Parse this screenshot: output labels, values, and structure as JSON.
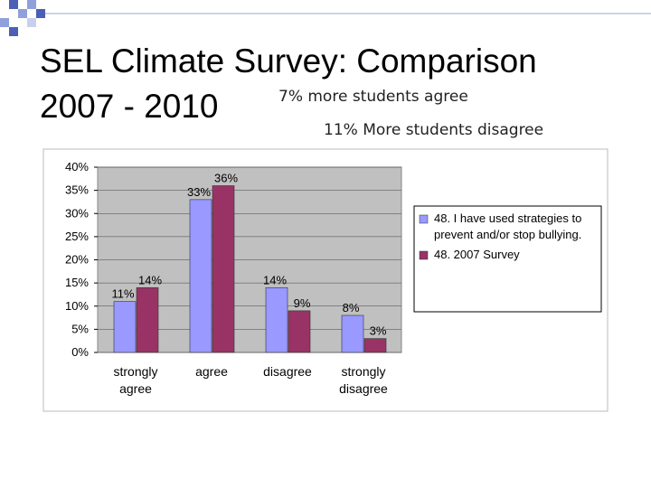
{
  "title_lines": [
    "SEL Climate Survey: Comparison",
    "2007 - 2010"
  ],
  "annotations": [
    "7% more students agree",
    "11% More students disagree"
  ],
  "chart_data": {
    "type": "bar",
    "categories": [
      "strongly agree",
      "agree",
      "disagree",
      "strongly disagree"
    ],
    "series": [
      {
        "name": "48. I have used strategies to prevent and/or stop bullying.",
        "color": "#9999ff",
        "values": [
          11,
          33,
          14,
          8
        ],
        "value_labels": [
          "11%",
          "33%",
          "14%",
          "8%"
        ]
      },
      {
        "name": "48. 2007 Survey",
        "color": "#993366",
        "values": [
          14,
          36,
          9,
          3
        ],
        "value_labels": [
          "14%",
          "36%",
          "9%",
          "3%"
        ]
      }
    ],
    "ylim": [
      0,
      40
    ],
    "yticks": [
      {
        "value": 0,
        "label": "0%"
      },
      {
        "value": 5,
        "label": "5%"
      },
      {
        "value": 10,
        "label": "10%"
      },
      {
        "value": 15,
        "label": "15%"
      },
      {
        "value": 20,
        "label": "20%"
      },
      {
        "value": 25,
        "label": "25%"
      },
      {
        "value": 30,
        "label": "30%"
      },
      {
        "value": 35,
        "label": "35%"
      },
      {
        "value": 40,
        "label": "40%"
      }
    ],
    "grid": true,
    "legend": "right"
  }
}
